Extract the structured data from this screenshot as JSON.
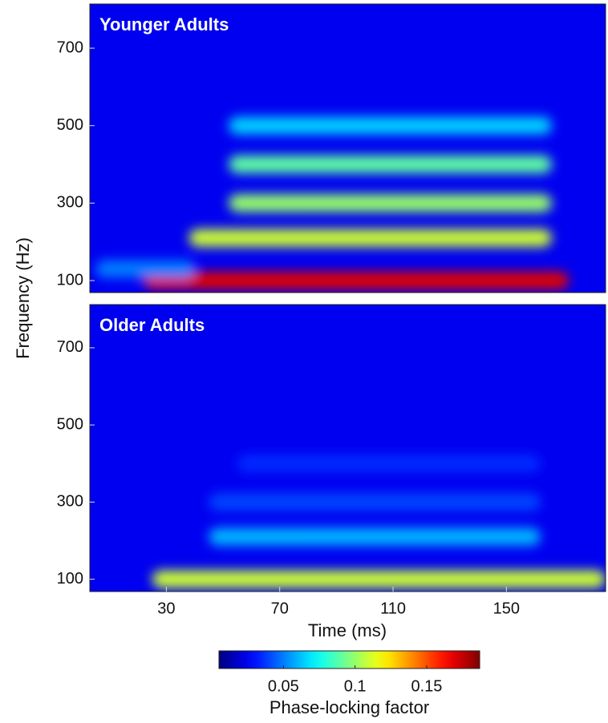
{
  "chart_data": [
    {
      "type": "heatmap",
      "title": "Younger Adults",
      "ylabel": "Frequency (Hz)",
      "xlim": [
        3,
        185
      ],
      "ylim": [
        69,
        814
      ],
      "yticks": [
        100,
        300,
        500,
        700
      ],
      "background": 0.025,
      "bands": [
        {
          "y": 100,
          "x": [
            22,
            172
          ],
          "value": 0.17
        },
        {
          "y": 130,
          "x": [
            5,
            40
          ],
          "value": 0.05
        },
        {
          "y": 210,
          "x": [
            38,
            166
          ],
          "value": 0.11
        },
        {
          "y": 300,
          "x": [
            52,
            166
          ],
          "value": 0.1
        },
        {
          "y": 400,
          "x": [
            52,
            166
          ],
          "value": 0.09
        },
        {
          "y": 500,
          "x": [
            52,
            166
          ],
          "value": 0.065
        }
      ]
    },
    {
      "type": "heatmap",
      "title": "Older Adults",
      "xlabel": "Time (ms)",
      "xlim": [
        3,
        185
      ],
      "ylim": [
        68,
        812
      ],
      "xticks": [
        30,
        70,
        110,
        150
      ],
      "yticks": [
        100,
        300,
        500,
        700
      ],
      "background": 0.025,
      "bands": [
        {
          "y": 100,
          "x": [
            25,
            185
          ],
          "value": 0.11
        },
        {
          "y": 210,
          "x": [
            45,
            162
          ],
          "value": 0.06
        },
        {
          "y": 300,
          "x": [
            45,
            162
          ],
          "value": 0.04
        },
        {
          "y": 400,
          "x": [
            55,
            162
          ],
          "value": 0.035
        }
      ]
    },
    {
      "type": "colorbar",
      "label": "Phase-locking factor",
      "lim": [
        0.005,
        0.187
      ],
      "ticks": [
        0.05,
        0.1,
        0.15
      ]
    }
  ]
}
